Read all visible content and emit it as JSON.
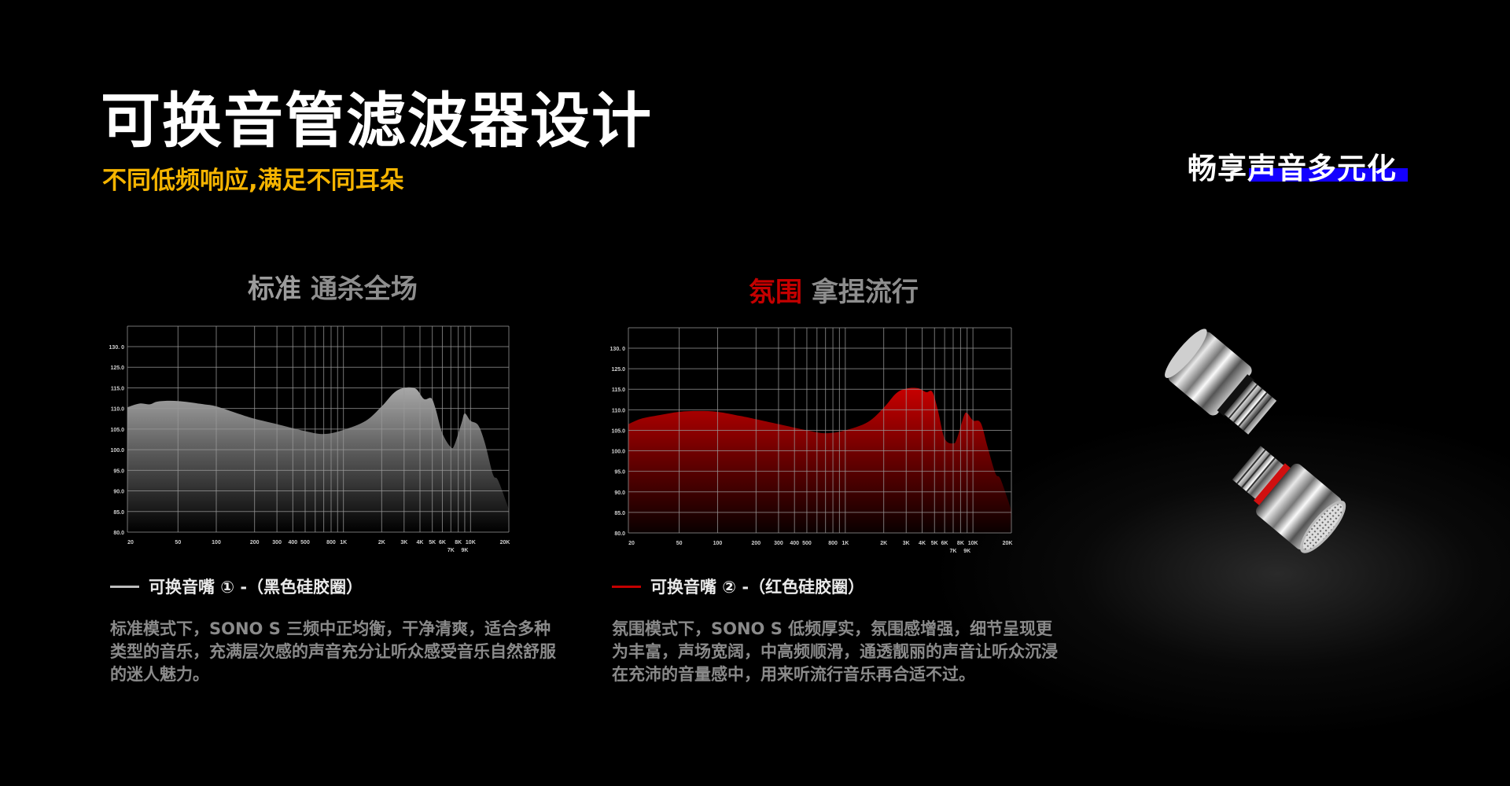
{
  "header": {
    "title": "可换音管滤波器设计",
    "subtitle": "不同低频响应,满足不同耳朵",
    "tagline": "畅享声音多元化",
    "accent_yellow": "#f5b400",
    "accent_blue": "#1400ff"
  },
  "panels": [
    {
      "title_part1": "标准",
      "title_part2": "通杀全场",
      "legend": "可换音嘴 ① -（黑色硅胶圈）",
      "legend_color": "#bdbdbd",
      "description": "标准模式下，SONO S 三频中正均衡，干净清爽，适合多种类型的音乐，充满层次感的声音充分让听众感受音乐自然舒服的迷人魅力。"
    },
    {
      "title_part1": "氛围",
      "title_part2": "拿捏流行",
      "title_part1_color": "#c40000",
      "legend": "可换音嘴 ② -（红色硅胶圈）",
      "legend_color": "#c40000",
      "description": "氛围模式下，SONO S 低频厚实，氛围感增强，细节呈现更为丰富，声场宽阔，中高频顺滑，通透靓丽的声音让听众沉浸在充沛的音量感中，用来听流行音乐再合适不过。"
    }
  ],
  "chart_data": [
    {
      "type": "area",
      "x_scale": "log",
      "xlim": [
        20,
        20000
      ],
      "y_tick_labels": [
        "80.0",
        "85.0",
        "90.0",
        "95.0",
        "100.0",
        "105.0",
        "110.0",
        "115.0",
        "125.0",
        "130. 0"
      ],
      "y_tick_values": [
        80,
        85,
        90,
        95,
        100,
        105,
        110,
        115,
        125,
        130
      ],
      "x_tick_labels": [
        "20",
        "50",
        "100",
        "200",
        "300",
        "400",
        "500",
        "800",
        "1K",
        "2K",
        "3K",
        "4K",
        "5K",
        "6K",
        "7K",
        "8K",
        "9K",
        "10K",
        "20K"
      ],
      "x_tick_values": [
        20,
        50,
        100,
        200,
        300,
        400,
        500,
        800,
        1000,
        2000,
        3000,
        4000,
        5000,
        6000,
        7000,
        8000,
        9000,
        10000,
        20000
      ],
      "grid": true,
      "grid_x": [
        50,
        100,
        200,
        300,
        400,
        500,
        600,
        700,
        800,
        900,
        1000,
        2000,
        3000,
        4000,
        5000,
        6000,
        7000,
        8000,
        9000,
        10000
      ],
      "fill_color": "#9a9a9a",
      "x": [
        20,
        25,
        30,
        35,
        50,
        80,
        100,
        150,
        200,
        300,
        500,
        700,
        1000,
        1500,
        2000,
        2500,
        3000,
        3700,
        4300,
        4900,
        5300,
        6000,
        7000,
        7500,
        8500,
        9000,
        10000,
        11500,
        13000,
        15000,
        16500,
        20000
      ],
      "y": [
        110.3,
        111.2,
        111,
        111.7,
        111.8,
        111,
        110.5,
        108.7,
        107.5,
        106.2,
        104.5,
        103.8,
        104.8,
        107,
        110.5,
        113.8,
        115,
        114.8,
        112.3,
        112.5,
        110,
        104,
        100.6,
        101.3,
        106.5,
        108.8,
        107,
        105.9,
        101.5,
        94,
        92.5,
        85.5
      ]
    },
    {
      "type": "area",
      "x_scale": "log",
      "xlim": [
        20,
        20000
      ],
      "y_tick_labels": [
        "80.0",
        "85.0",
        "90.0",
        "95.0",
        "100.0",
        "105.0",
        "110.0",
        "115.0",
        "125.0",
        "130. 0"
      ],
      "y_tick_values": [
        80,
        85,
        90,
        95,
        100,
        105,
        110,
        115,
        125,
        130
      ],
      "x_tick_labels": [
        "20",
        "50",
        "100",
        "200",
        "300",
        "400",
        "500",
        "800",
        "1K",
        "2K",
        "3K",
        "4K",
        "5K",
        "6K",
        "7K",
        "8K",
        "9K",
        "10K",
        "20K"
      ],
      "x_tick_values": [
        20,
        50,
        100,
        200,
        300,
        400,
        500,
        800,
        1000,
        2000,
        3000,
        4000,
        5000,
        6000,
        7000,
        8000,
        9000,
        10000,
        20000
      ],
      "grid": true,
      "grid_x": [
        50,
        100,
        200,
        300,
        400,
        500,
        600,
        700,
        800,
        900,
        1000,
        2000,
        3000,
        4000,
        5000,
        6000,
        7000,
        8000,
        9000,
        10000
      ],
      "fill_color": "#b80000",
      "x": [
        20,
        25,
        35,
        50,
        70,
        100,
        150,
        200,
        300,
        500,
        700,
        1000,
        1500,
        2000,
        2500,
        3000,
        3700,
        4300,
        4800,
        5300,
        6000,
        7000,
        7500,
        8500,
        9000,
        10000,
        11500,
        13000,
        15000,
        16500,
        20000
      ],
      "y": [
        106.5,
        107.8,
        108.7,
        109.5,
        109.7,
        109.5,
        108.5,
        107.7,
        106.5,
        105,
        104.3,
        105,
        107,
        110.5,
        114,
        115.3,
        115.5,
        114.3,
        114.4,
        110,
        103,
        101.8,
        103,
        108.5,
        109.2,
        107.4,
        106.8,
        101,
        94.5,
        93,
        85.5
      ]
    }
  ]
}
